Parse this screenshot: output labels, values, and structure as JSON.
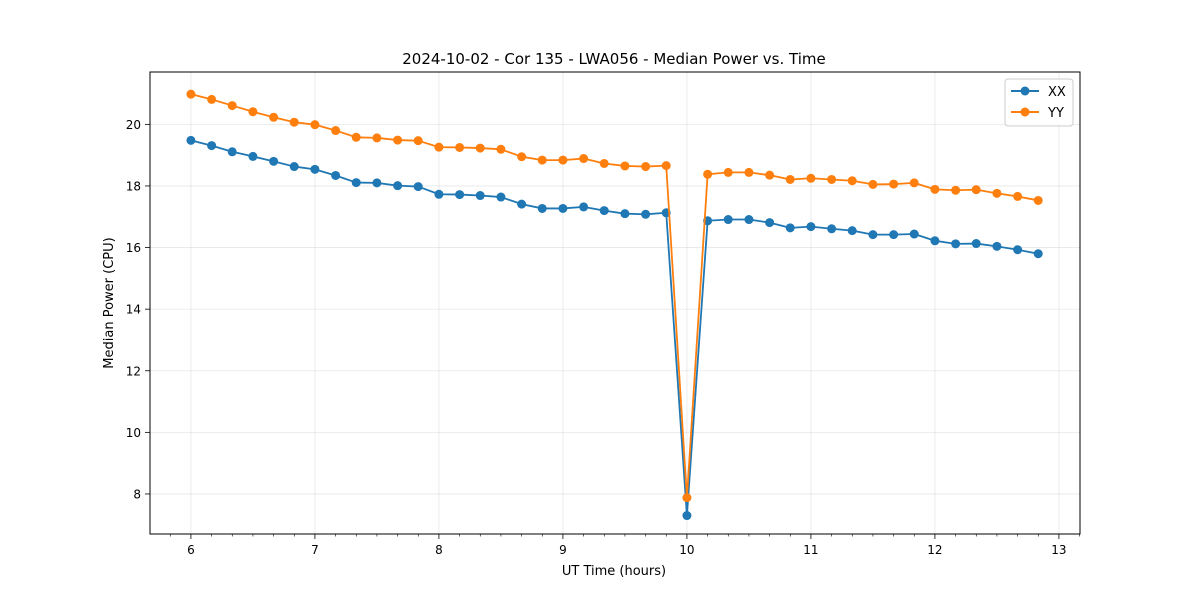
{
  "chart_data": {
    "type": "line",
    "title": "2024-10-02 - Cor 135 - LWA056 - Median Power vs. Time",
    "xlabel": "UT Time (hours)",
    "ylabel": "Median Power (CPU)",
    "xlim": [
      5.67,
      13.17
    ],
    "ylim": [
      6.7,
      21.7
    ],
    "xticks": [
      "6",
      "7",
      "8",
      "9",
      "10",
      "11",
      "12",
      "13"
    ],
    "yticks": [
      "8",
      "10",
      "12",
      "14",
      "16",
      "18",
      "20"
    ],
    "grid": true,
    "legend_position": "top-right",
    "x": [
      6.0,
      6.167,
      6.333,
      6.5,
      6.667,
      6.833,
      7.0,
      7.167,
      7.333,
      7.5,
      7.667,
      7.833,
      8.0,
      8.167,
      8.333,
      8.5,
      8.667,
      8.833,
      9.0,
      9.167,
      9.333,
      9.5,
      9.667,
      9.833,
      10.0,
      10.167,
      10.333,
      10.5,
      10.667,
      10.833,
      11.0,
      11.167,
      11.333,
      11.5,
      11.667,
      11.833,
      12.0,
      12.167,
      12.333,
      12.5,
      12.667,
      12.833
    ],
    "series": [
      {
        "name": "XX",
        "color": "#1f77b4",
        "values": [
          19.48,
          19.31,
          19.11,
          18.96,
          18.8,
          18.63,
          18.54,
          18.34,
          18.11,
          18.1,
          18.01,
          17.98,
          17.73,
          17.72,
          17.69,
          17.64,
          17.41,
          17.27,
          17.27,
          17.32,
          17.2,
          17.1,
          17.08,
          17.13,
          7.3,
          16.87,
          16.91,
          16.91,
          16.81,
          16.64,
          16.68,
          16.61,
          16.55,
          16.42,
          16.42,
          16.44,
          16.22,
          16.12,
          16.13,
          16.04,
          15.93,
          15.8
        ]
      },
      {
        "name": "YY",
        "color": "#ff7f0e",
        "values": [
          20.98,
          20.81,
          20.61,
          20.41,
          20.23,
          20.07,
          19.99,
          19.8,
          19.58,
          19.56,
          19.49,
          19.47,
          19.26,
          19.25,
          19.23,
          19.19,
          18.95,
          18.84,
          18.84,
          18.89,
          18.73,
          18.65,
          18.63,
          18.66,
          7.88,
          18.38,
          18.44,
          18.44,
          18.35,
          18.21,
          18.25,
          18.21,
          18.17,
          18.05,
          18.06,
          18.1,
          17.89,
          17.86,
          17.88,
          17.76,
          17.66,
          17.53
        ]
      }
    ]
  }
}
